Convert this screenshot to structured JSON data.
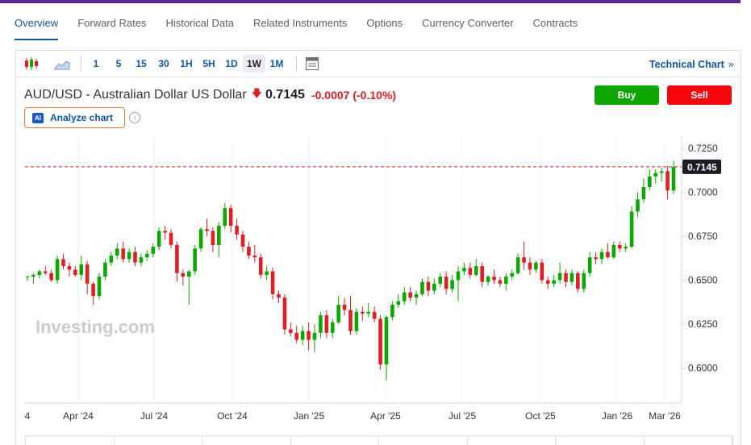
{
  "nav": {
    "tabs": [
      {
        "label": "Overview",
        "active": true
      },
      {
        "label": "Forward Rates"
      },
      {
        "label": "Historical Data"
      },
      {
        "label": "Related Instruments"
      },
      {
        "label": "Options"
      },
      {
        "label": "Currency Converter"
      },
      {
        "label": "Contracts"
      }
    ]
  },
  "toolbar": {
    "chart_type_icons": [
      "candlestick-icon",
      "area-chart-icon"
    ],
    "intervals": [
      "1",
      "5",
      "15",
      "30",
      "1H",
      "5H",
      "1D",
      "1W",
      "1M"
    ],
    "active_interval": "1W",
    "table_icon": "table-icon",
    "technical_chart_label": "Technical Chart",
    "technical_chart_chevron": "»"
  },
  "instrument": {
    "name": "AUD/USD - Australian Dollar US Dollar",
    "direction_icon": "down-arrow-icon",
    "price": "0.7145",
    "change": "-0.0007",
    "change_pct": "(-0.10%)"
  },
  "actions": {
    "buy_label": "Buy",
    "sell_label": "Sell"
  },
  "analyze": {
    "badge": "AI",
    "label": "Analyze chart",
    "info_icon": "i"
  },
  "colors": {
    "up": "#0ea600",
    "down": "#dd1f26",
    "accent": "#1256a0",
    "brand_bar": "#5b2d8e"
  },
  "chart_data": {
    "type": "candlestick",
    "watermark": "Investing.com",
    "last_price_label": "0.7145",
    "y_ticks": [
      "0.7250",
      "0.7000",
      "0.6750",
      "0.6500",
      "0.6250",
      "0.6000"
    ],
    "ylim": [
      0.5875,
      0.725
    ],
    "x_ticks": [
      "4",
      "Apr '24",
      "Jul '24",
      "Oct '24",
      "Jan '25",
      "Apr '25",
      "Jul '25",
      "Oct '25",
      "Jan '26",
      "Mar '26"
    ],
    "grid": "vertical",
    "candles": [
      [
        0.652,
        0.6525,
        0.6495,
        0.652
      ],
      [
        0.652,
        0.654,
        0.648,
        0.653
      ],
      [
        0.653,
        0.656,
        0.651,
        0.655
      ],
      [
        0.655,
        0.658,
        0.653,
        0.654
      ],
      [
        0.654,
        0.656,
        0.649,
        0.65
      ],
      [
        0.65,
        0.664,
        0.648,
        0.662
      ],
      [
        0.662,
        0.665,
        0.656,
        0.658
      ],
      [
        0.658,
        0.66,
        0.652,
        0.656
      ],
      [
        0.656,
        0.658,
        0.652,
        0.653
      ],
      [
        0.653,
        0.664,
        0.65,
        0.659
      ],
      [
        0.659,
        0.661,
        0.642,
        0.648
      ],
      [
        0.648,
        0.649,
        0.636,
        0.641
      ],
      [
        0.641,
        0.654,
        0.639,
        0.652
      ],
      [
        0.652,
        0.662,
        0.65,
        0.66
      ],
      [
        0.66,
        0.666,
        0.658,
        0.664
      ],
      [
        0.664,
        0.671,
        0.662,
        0.668
      ],
      [
        0.668,
        0.672,
        0.66,
        0.662
      ],
      [
        0.662,
        0.668,
        0.66,
        0.666
      ],
      [
        0.666,
        0.669,
        0.658,
        0.66
      ],
      [
        0.66,
        0.665,
        0.658,
        0.663
      ],
      [
        0.663,
        0.667,
        0.661,
        0.665
      ],
      [
        0.665,
        0.671,
        0.663,
        0.669
      ],
      [
        0.669,
        0.68,
        0.667,
        0.678
      ],
      [
        0.678,
        0.681,
        0.673,
        0.677
      ],
      [
        0.677,
        0.679,
        0.668,
        0.67
      ],
      [
        0.67,
        0.672,
        0.649,
        0.654
      ],
      [
        0.654,
        0.656,
        0.647,
        0.652
      ],
      [
        0.652,
        0.656,
        0.636,
        0.655
      ],
      [
        0.655,
        0.67,
        0.653,
        0.668
      ],
      [
        0.668,
        0.68,
        0.666,
        0.679
      ],
      [
        0.679,
        0.685,
        0.675,
        0.678
      ],
      [
        0.678,
        0.68,
        0.666,
        0.67
      ],
      [
        0.67,
        0.683,
        0.663,
        0.681
      ],
      [
        0.681,
        0.694,
        0.679,
        0.691
      ],
      [
        0.691,
        0.693,
        0.677,
        0.681
      ],
      [
        0.681,
        0.685,
        0.673,
        0.676
      ],
      [
        0.676,
        0.678,
        0.666,
        0.669
      ],
      [
        0.669,
        0.672,
        0.662,
        0.664
      ],
      [
        0.664,
        0.67,
        0.66,
        0.663
      ],
      [
        0.663,
        0.665,
        0.651,
        0.653
      ],
      [
        0.653,
        0.658,
        0.65,
        0.655
      ],
      [
        0.655,
        0.657,
        0.639,
        0.642
      ],
      [
        0.642,
        0.644,
        0.637,
        0.64
      ],
      [
        0.64,
        0.642,
        0.619,
        0.622
      ],
      [
        0.622,
        0.626,
        0.618,
        0.62
      ],
      [
        0.62,
        0.624,
        0.614,
        0.616
      ],
      [
        0.616,
        0.624,
        0.613,
        0.621
      ],
      [
        0.621,
        0.626,
        0.61,
        0.616
      ],
      [
        0.616,
        0.625,
        0.609,
        0.62
      ],
      [
        0.62,
        0.632,
        0.617,
        0.63
      ],
      [
        0.63,
        0.633,
        0.617,
        0.62
      ],
      [
        0.62,
        0.628,
        0.617,
        0.626
      ],
      [
        0.626,
        0.641,
        0.625,
        0.636
      ],
      [
        0.636,
        0.64,
        0.63,
        0.633
      ],
      [
        0.633,
        0.641,
        0.619,
        0.621
      ],
      [
        0.621,
        0.634,
        0.619,
        0.632
      ],
      [
        0.632,
        0.635,
        0.627,
        0.631
      ],
      [
        0.631,
        0.637,
        0.629,
        0.632
      ],
      [
        0.632,
        0.635,
        0.626,
        0.628
      ],
      [
        0.628,
        0.63,
        0.599,
        0.602
      ],
      [
        0.602,
        0.63,
        0.593,
        0.629
      ],
      [
        0.629,
        0.638,
        0.627,
        0.636
      ],
      [
        0.636,
        0.642,
        0.634,
        0.638
      ],
      [
        0.638,
        0.646,
        0.636,
        0.643
      ],
      [
        0.643,
        0.646,
        0.638,
        0.64
      ],
      [
        0.64,
        0.644,
        0.636,
        0.642
      ],
      [
        0.642,
        0.651,
        0.641,
        0.649
      ],
      [
        0.649,
        0.652,
        0.641,
        0.644
      ],
      [
        0.644,
        0.651,
        0.642,
        0.648
      ],
      [
        0.648,
        0.654,
        0.646,
        0.652
      ],
      [
        0.652,
        0.655,
        0.642,
        0.645
      ],
      [
        0.645,
        0.653,
        0.643,
        0.65
      ],
      [
        0.65,
        0.658,
        0.638,
        0.655
      ],
      [
        0.655,
        0.66,
        0.653,
        0.657
      ],
      [
        0.657,
        0.66,
        0.651,
        0.653
      ],
      [
        0.653,
        0.662,
        0.652,
        0.658
      ],
      [
        0.658,
        0.66,
        0.646,
        0.649
      ],
      [
        0.649,
        0.653,
        0.647,
        0.652
      ],
      [
        0.652,
        0.656,
        0.648,
        0.65
      ],
      [
        0.65,
        0.652,
        0.646,
        0.648
      ],
      [
        0.648,
        0.654,
        0.644,
        0.652
      ],
      [
        0.652,
        0.656,
        0.65,
        0.654
      ],
      [
        0.654,
        0.665,
        0.653,
        0.663
      ],
      [
        0.663,
        0.672,
        0.656,
        0.66
      ],
      [
        0.66,
        0.663,
        0.653,
        0.656
      ],
      [
        0.656,
        0.661,
        0.654,
        0.66
      ],
      [
        0.66,
        0.662,
        0.648,
        0.65
      ],
      [
        0.65,
        0.652,
        0.645,
        0.648
      ],
      [
        0.648,
        0.653,
        0.646,
        0.65
      ],
      [
        0.65,
        0.66,
        0.648,
        0.654
      ],
      [
        0.654,
        0.656,
        0.646,
        0.649
      ],
      [
        0.649,
        0.656,
        0.647,
        0.654
      ],
      [
        0.654,
        0.655,
        0.643,
        0.645
      ],
      [
        0.645,
        0.656,
        0.643,
        0.654
      ],
      [
        0.654,
        0.666,
        0.652,
        0.663
      ],
      [
        0.663,
        0.666,
        0.659,
        0.662
      ],
      [
        0.662,
        0.668,
        0.659,
        0.666
      ],
      [
        0.666,
        0.671,
        0.662,
        0.663
      ],
      [
        0.663,
        0.672,
        0.662,
        0.67
      ],
      [
        0.67,
        0.672,
        0.666,
        0.668
      ],
      [
        0.668,
        0.671,
        0.666,
        0.669
      ],
      [
        0.669,
        0.692,
        0.668,
        0.689
      ],
      [
        0.689,
        0.7,
        0.686,
        0.696
      ],
      [
        0.696,
        0.708,
        0.694,
        0.703
      ],
      [
        0.703,
        0.713,
        0.701,
        0.709
      ],
      [
        0.709,
        0.713,
        0.705,
        0.711
      ],
      [
        0.711,
        0.714,
        0.706,
        0.712
      ],
      [
        0.712,
        0.715,
        0.696,
        0.701
      ],
      [
        0.701,
        0.718,
        0.699,
        0.7145
      ]
    ]
  },
  "footer": {
    "cells": 8
  }
}
